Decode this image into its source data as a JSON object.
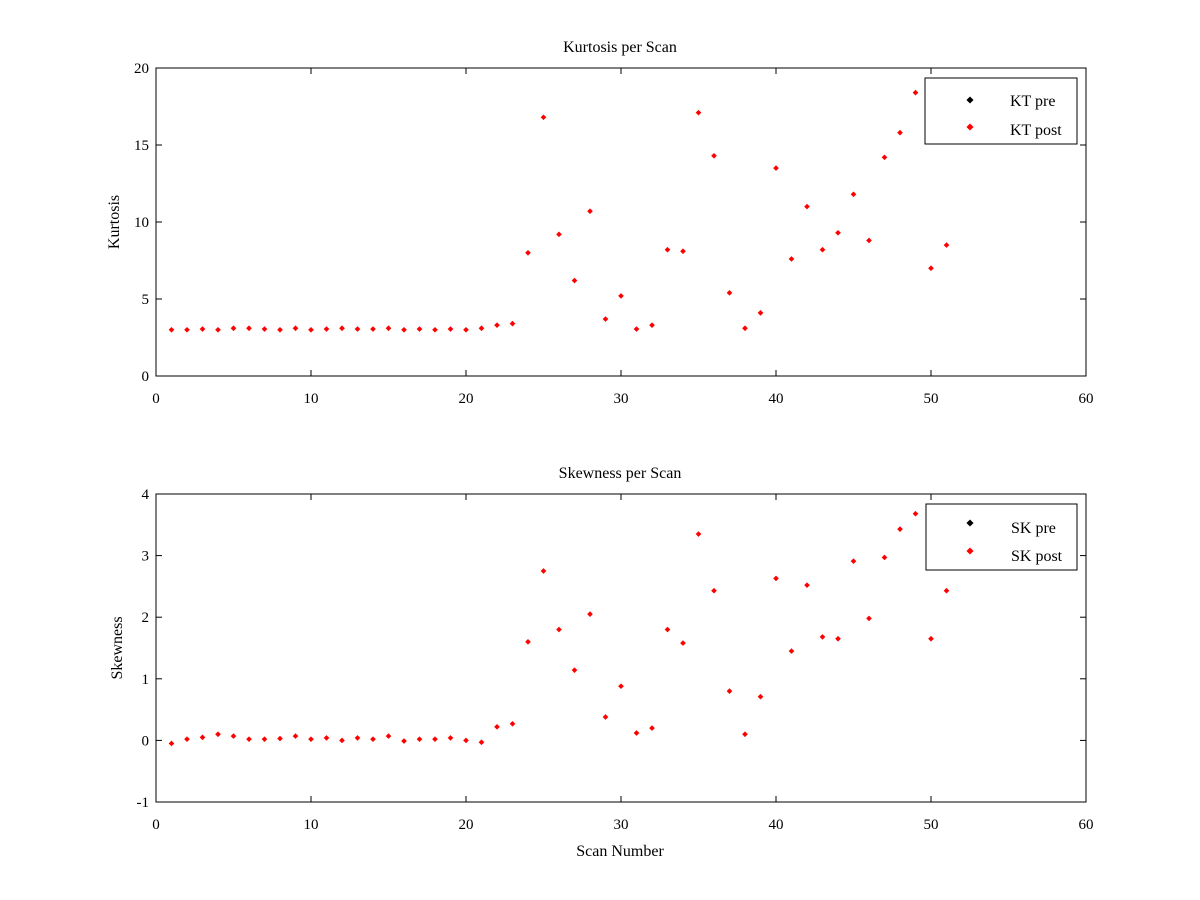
{
  "chart_data": [
    {
      "type": "scatter",
      "title": "Kurtosis per Scan",
      "xlabel": "",
      "ylabel": "Kurtosis",
      "xlim": [
        0,
        60
      ],
      "ylim": [
        0,
        20
      ],
      "xticks": [
        0,
        10,
        20,
        30,
        40,
        50,
        60
      ],
      "yticks": [
        0,
        5,
        10,
        15,
        20
      ],
      "grid": false,
      "legend_position": "top-right",
      "series": [
        {
          "name": "KT pre",
          "color": "#000000",
          "x": [],
          "y": []
        },
        {
          "name": "KT post",
          "color": "#ff0000",
          "x": [
            1,
            2,
            3,
            4,
            5,
            6,
            7,
            8,
            9,
            10,
            11,
            12,
            13,
            14,
            15,
            16,
            17,
            18,
            19,
            20,
            21,
            22,
            23,
            24,
            25,
            26,
            27,
            28,
            29,
            30,
            31,
            32,
            33,
            34,
            35,
            36,
            37,
            38,
            39,
            40,
            41,
            42,
            43,
            44,
            45,
            46,
            47,
            48,
            49,
            50,
            51
          ],
          "y": [
            3.0,
            3.0,
            3.05,
            3.0,
            3.1,
            3.1,
            3.05,
            3.0,
            3.1,
            3.0,
            3.05,
            3.1,
            3.05,
            3.05,
            3.1,
            3.0,
            3.05,
            3.0,
            3.05,
            3.0,
            3.1,
            3.3,
            3.4,
            8.0,
            16.8,
            9.2,
            6.2,
            10.7,
            3.7,
            5.2,
            3.05,
            3.3,
            8.2,
            8.1,
            17.1,
            14.3,
            5.4,
            3.1,
            4.1,
            13.5,
            7.6,
            11.0,
            8.2,
            9.3,
            11.8,
            8.8,
            14.2,
            15.8,
            18.4,
            7.0,
            8.5
          ]
        }
      ]
    },
    {
      "type": "scatter",
      "title": "Skewness per Scan",
      "xlabel": "Scan Number",
      "ylabel": "Skewness",
      "xlim": [
        0,
        60
      ],
      "ylim": [
        -1,
        4
      ],
      "xticks": [
        0,
        10,
        20,
        30,
        40,
        50,
        60
      ],
      "yticks": [
        -1,
        0,
        1,
        2,
        3,
        4
      ],
      "grid": false,
      "legend_position": "top-right",
      "series": [
        {
          "name": "SK pre",
          "color": "#000000",
          "x": [],
          "y": []
        },
        {
          "name": "SK post",
          "color": "#ff0000",
          "x": [
            1,
            2,
            3,
            4,
            5,
            6,
            7,
            8,
            9,
            10,
            11,
            12,
            13,
            14,
            15,
            16,
            17,
            18,
            19,
            20,
            21,
            22,
            23,
            24,
            25,
            26,
            27,
            28,
            29,
            30,
            31,
            32,
            33,
            34,
            35,
            36,
            37,
            38,
            39,
            40,
            41,
            42,
            43,
            44,
            45,
            46,
            47,
            48,
            49,
            50,
            51
          ],
          "y": [
            -0.05,
            0.02,
            0.05,
            0.1,
            0.07,
            0.02,
            0.02,
            0.03,
            0.07,
            0.02,
            0.04,
            0.0,
            0.04,
            0.02,
            0.07,
            -0.01,
            0.02,
            0.02,
            0.04,
            0.0,
            -0.03,
            0.22,
            0.27,
            1.6,
            2.75,
            1.8,
            1.14,
            2.05,
            0.38,
            0.88,
            0.12,
            0.2,
            1.8,
            1.58,
            3.35,
            2.43,
            0.8,
            0.1,
            0.71,
            2.63,
            1.45,
            2.52,
            1.68,
            1.65,
            2.91,
            1.98,
            2.97,
            3.43,
            3.68,
            1.65,
            2.43
          ]
        }
      ]
    }
  ]
}
